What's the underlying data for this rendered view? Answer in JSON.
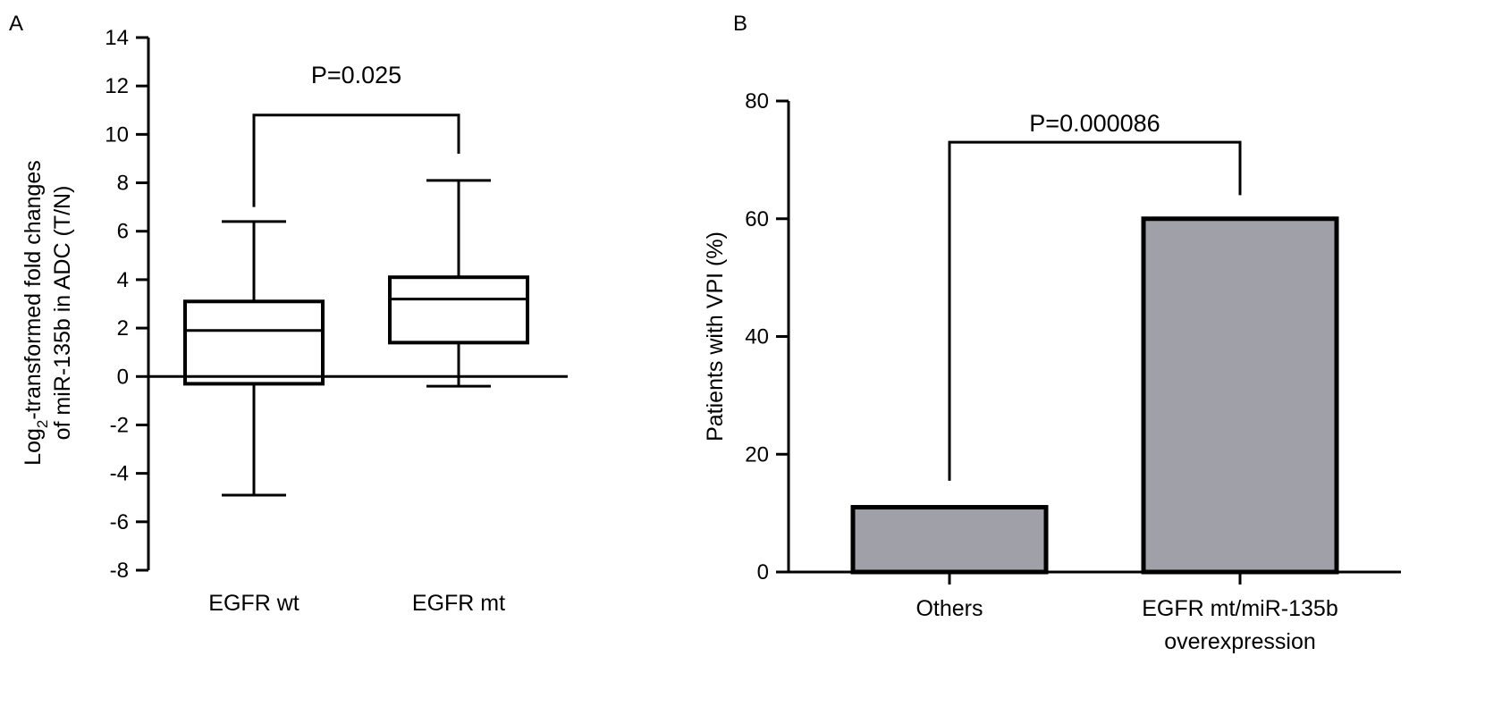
{
  "panels": {
    "A": {
      "label": "A"
    },
    "B": {
      "label": "B"
    }
  },
  "chart_data": [
    {
      "type": "box",
      "panel": "A",
      "ylabel_line1_parts": [
        "Log",
        "2",
        "-transformed fold changes"
      ],
      "ylabel_line2": "of miR-135b in ADC (T/N)",
      "ylim": [
        -8,
        14
      ],
      "yticks": [
        14,
        12,
        10,
        8,
        6,
        4,
        2,
        0,
        -2,
        -4,
        -6,
        -8
      ],
      "reference_line": 0,
      "categories": [
        "EGFR wt",
        "EGFR mt"
      ],
      "boxes": [
        {
          "min": -4.9,
          "q1": -0.3,
          "median": 1.9,
          "q3": 3.1,
          "max": 6.4
        },
        {
          "min": -0.4,
          "q1": 1.4,
          "median": 3.2,
          "q3": 4.1,
          "max": 8.1
        }
      ],
      "bracket": {
        "y": 10.8,
        "left_end": 7.0,
        "right_end": 9.2
      },
      "annotation": "P=0.025"
    },
    {
      "type": "bar",
      "panel": "B",
      "ylabel": "Patients with VPI (%)",
      "ylim": [
        0,
        80
      ],
      "yticks": [
        80,
        60,
        40,
        20,
        0
      ],
      "categories": [
        {
          "line1": "Others",
          "line2": ""
        },
        {
          "line1": "EGFR mt/miR-135b",
          "line2": "overexpression"
        }
      ],
      "values": [
        11,
        60
      ],
      "bar_color": "#a0a0a8",
      "bracket": {
        "y": 73,
        "left_end": 15.5,
        "right_end": 64
      },
      "annotation": "P=0.000086"
    }
  ]
}
